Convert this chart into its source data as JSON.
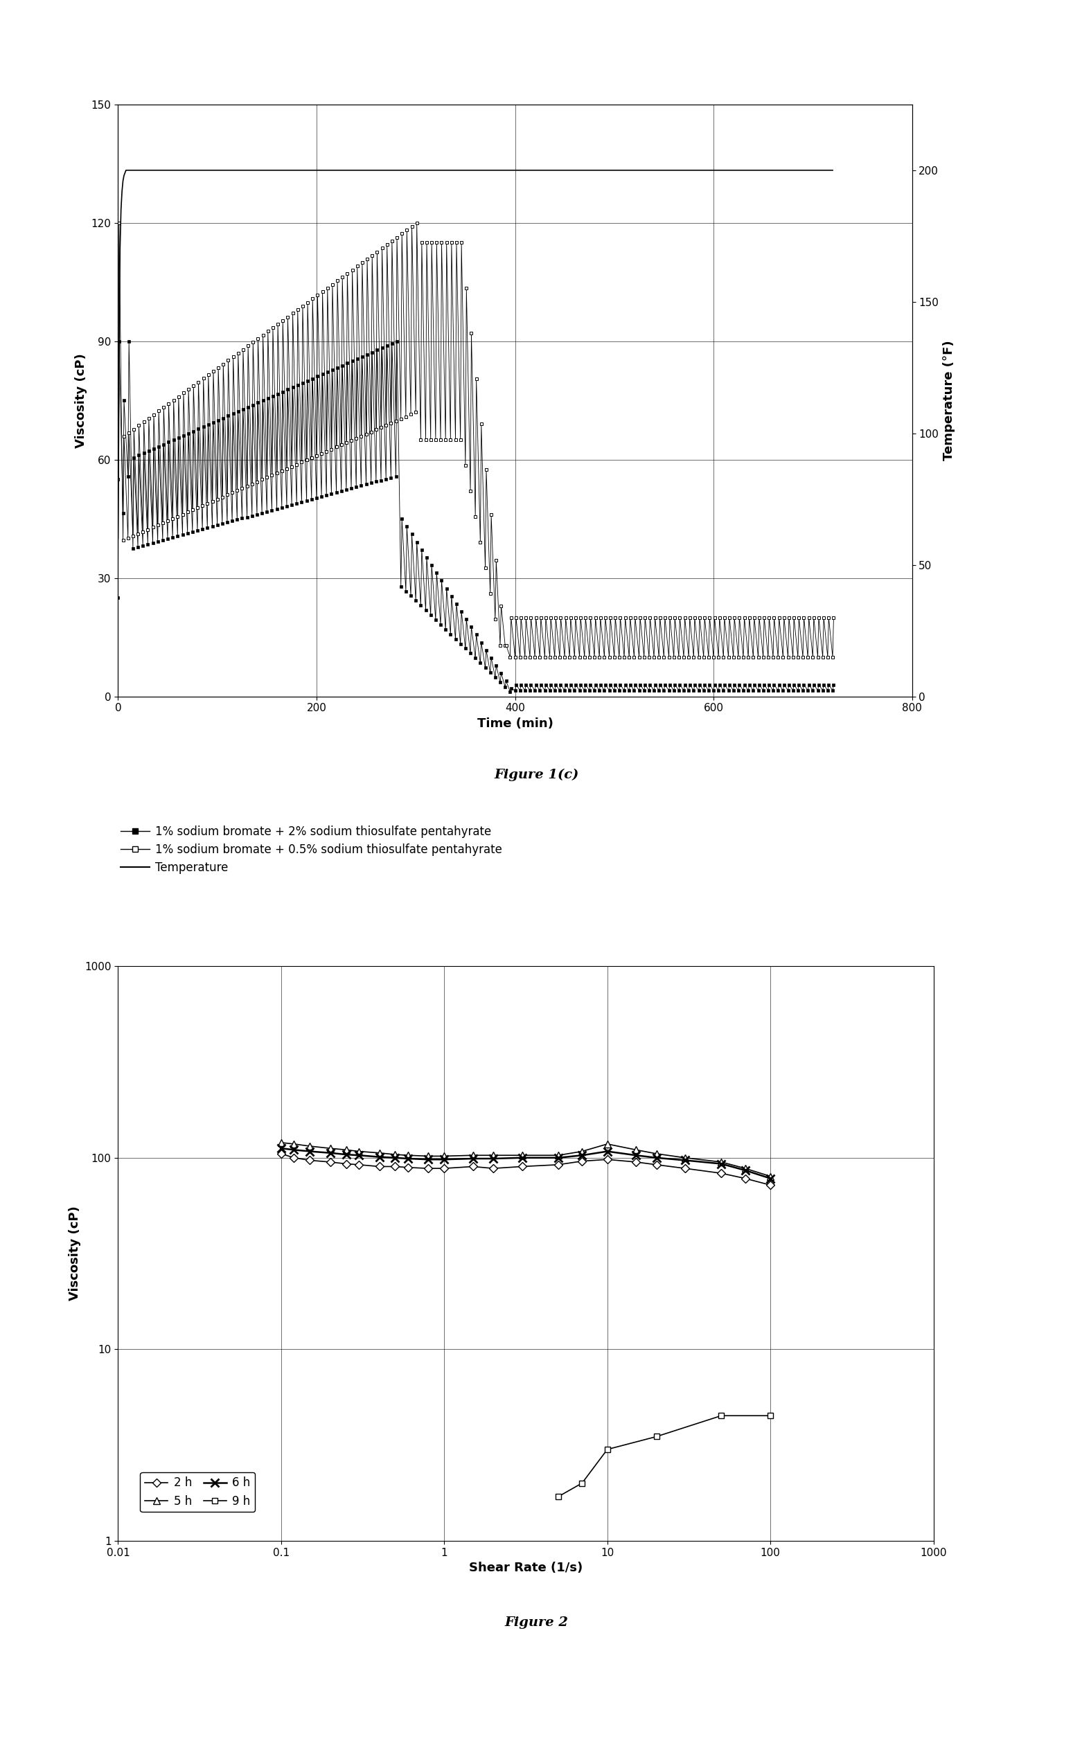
{
  "fig1c": {
    "title": "Figure 1(c)",
    "xlabel": "Time (min)",
    "ylabel_left": "Viscosity (cP)",
    "ylabel_right": "Temperature (°F)",
    "xlim": [
      0,
      800
    ],
    "ylim_left": [
      0,
      150
    ],
    "ylim_right": [
      0,
      225
    ],
    "xticks": [
      0,
      200,
      400,
      600,
      800
    ],
    "yticks_left": [
      0,
      30,
      60,
      90,
      120,
      150
    ],
    "yticks_right": [
      0,
      50,
      100,
      150,
      200
    ],
    "legend1": "1% sodium bromate + 2% sodium thiosulfate pentahyrate",
    "legend2": "1% sodium bromate + 0.5% sodium thiosulfate pentahyrate",
    "legend3": "Temperature",
    "temp_time": [
      0,
      1,
      2,
      3,
      4,
      5,
      6,
      7,
      8,
      9,
      10,
      15,
      20,
      25,
      30,
      40,
      50,
      60,
      70,
      80,
      90,
      100,
      120,
      140,
      160,
      180,
      200,
      220,
      240,
      260,
      280,
      300,
      320,
      340,
      360,
      380,
      400,
      420,
      440,
      460,
      480,
      500,
      520,
      540,
      560,
      580,
      600,
      620,
      640,
      660,
      680,
      700,
      720
    ],
    "temp_vals": [
      60,
      120,
      170,
      185,
      192,
      196,
      198,
      199,
      200,
      200,
      200,
      200,
      200,
      200,
      200,
      200,
      200,
      200,
      200,
      200,
      200,
      200,
      200,
      200,
      200,
      200,
      200,
      200,
      200,
      200,
      200,
      200,
      200,
      200,
      200,
      200,
      200,
      200,
      200,
      200,
      200,
      200,
      200,
      200,
      200,
      200,
      200,
      200,
      200,
      200,
      200,
      200,
      200
    ]
  },
  "fig2": {
    "title": "Figure 2",
    "xlabel": "Shear Rate (1/s)",
    "ylabel": "Viscosity (cP)",
    "xlim": [
      0.01,
      1000
    ],
    "ylim": [
      1,
      1000
    ],
    "series_2h_x": [
      0.1,
      0.12,
      0.15,
      0.2,
      0.25,
      0.3,
      0.4,
      0.5,
      0.6,
      0.8,
      1.0,
      1.5,
      2.0,
      3.0,
      5.0,
      7.0,
      10.0,
      15.0,
      20.0,
      30.0,
      50.0,
      70.0,
      100.0
    ],
    "series_2h_y": [
      105,
      100,
      97,
      95,
      93,
      92,
      90,
      90,
      89,
      88,
      88,
      90,
      88,
      90,
      92,
      96,
      98,
      95,
      92,
      88,
      83,
      78,
      72
    ],
    "series_5h_x": [
      0.1,
      0.12,
      0.15,
      0.2,
      0.25,
      0.3,
      0.4,
      0.5,
      0.6,
      0.8,
      1.0,
      1.5,
      2.0,
      3.0,
      5.0,
      7.0,
      10.0,
      15.0,
      20.0,
      30.0,
      50.0,
      70.0,
      100.0
    ],
    "series_5h_y": [
      120,
      118,
      115,
      112,
      110,
      108,
      106,
      104,
      103,
      102,
      102,
      103,
      103,
      103,
      103,
      108,
      118,
      110,
      105,
      100,
      95,
      88,
      80
    ],
    "series_6h_x": [
      0.1,
      0.12,
      0.15,
      0.2,
      0.25,
      0.3,
      0.4,
      0.5,
      0.6,
      0.8,
      1.0,
      1.5,
      2.0,
      3.0,
      5.0,
      7.0,
      10.0,
      15.0,
      20.0,
      30.0,
      50.0,
      70.0,
      100.0
    ],
    "series_6h_y": [
      112,
      110,
      108,
      106,
      104,
      103,
      101,
      100,
      99,
      98,
      98,
      99,
      99,
      100,
      100,
      103,
      108,
      103,
      100,
      97,
      93,
      86,
      78
    ],
    "series_9h_x": [
      5.0,
      7.0,
      10.0,
      20.0,
      50.0,
      100.0
    ],
    "series_9h_y": [
      1.7,
      2.0,
      3.0,
      3.5,
      4.5,
      4.5
    ],
    "legend": [
      "2 h",
      "5 h",
      "6 h",
      "9 h"
    ]
  }
}
